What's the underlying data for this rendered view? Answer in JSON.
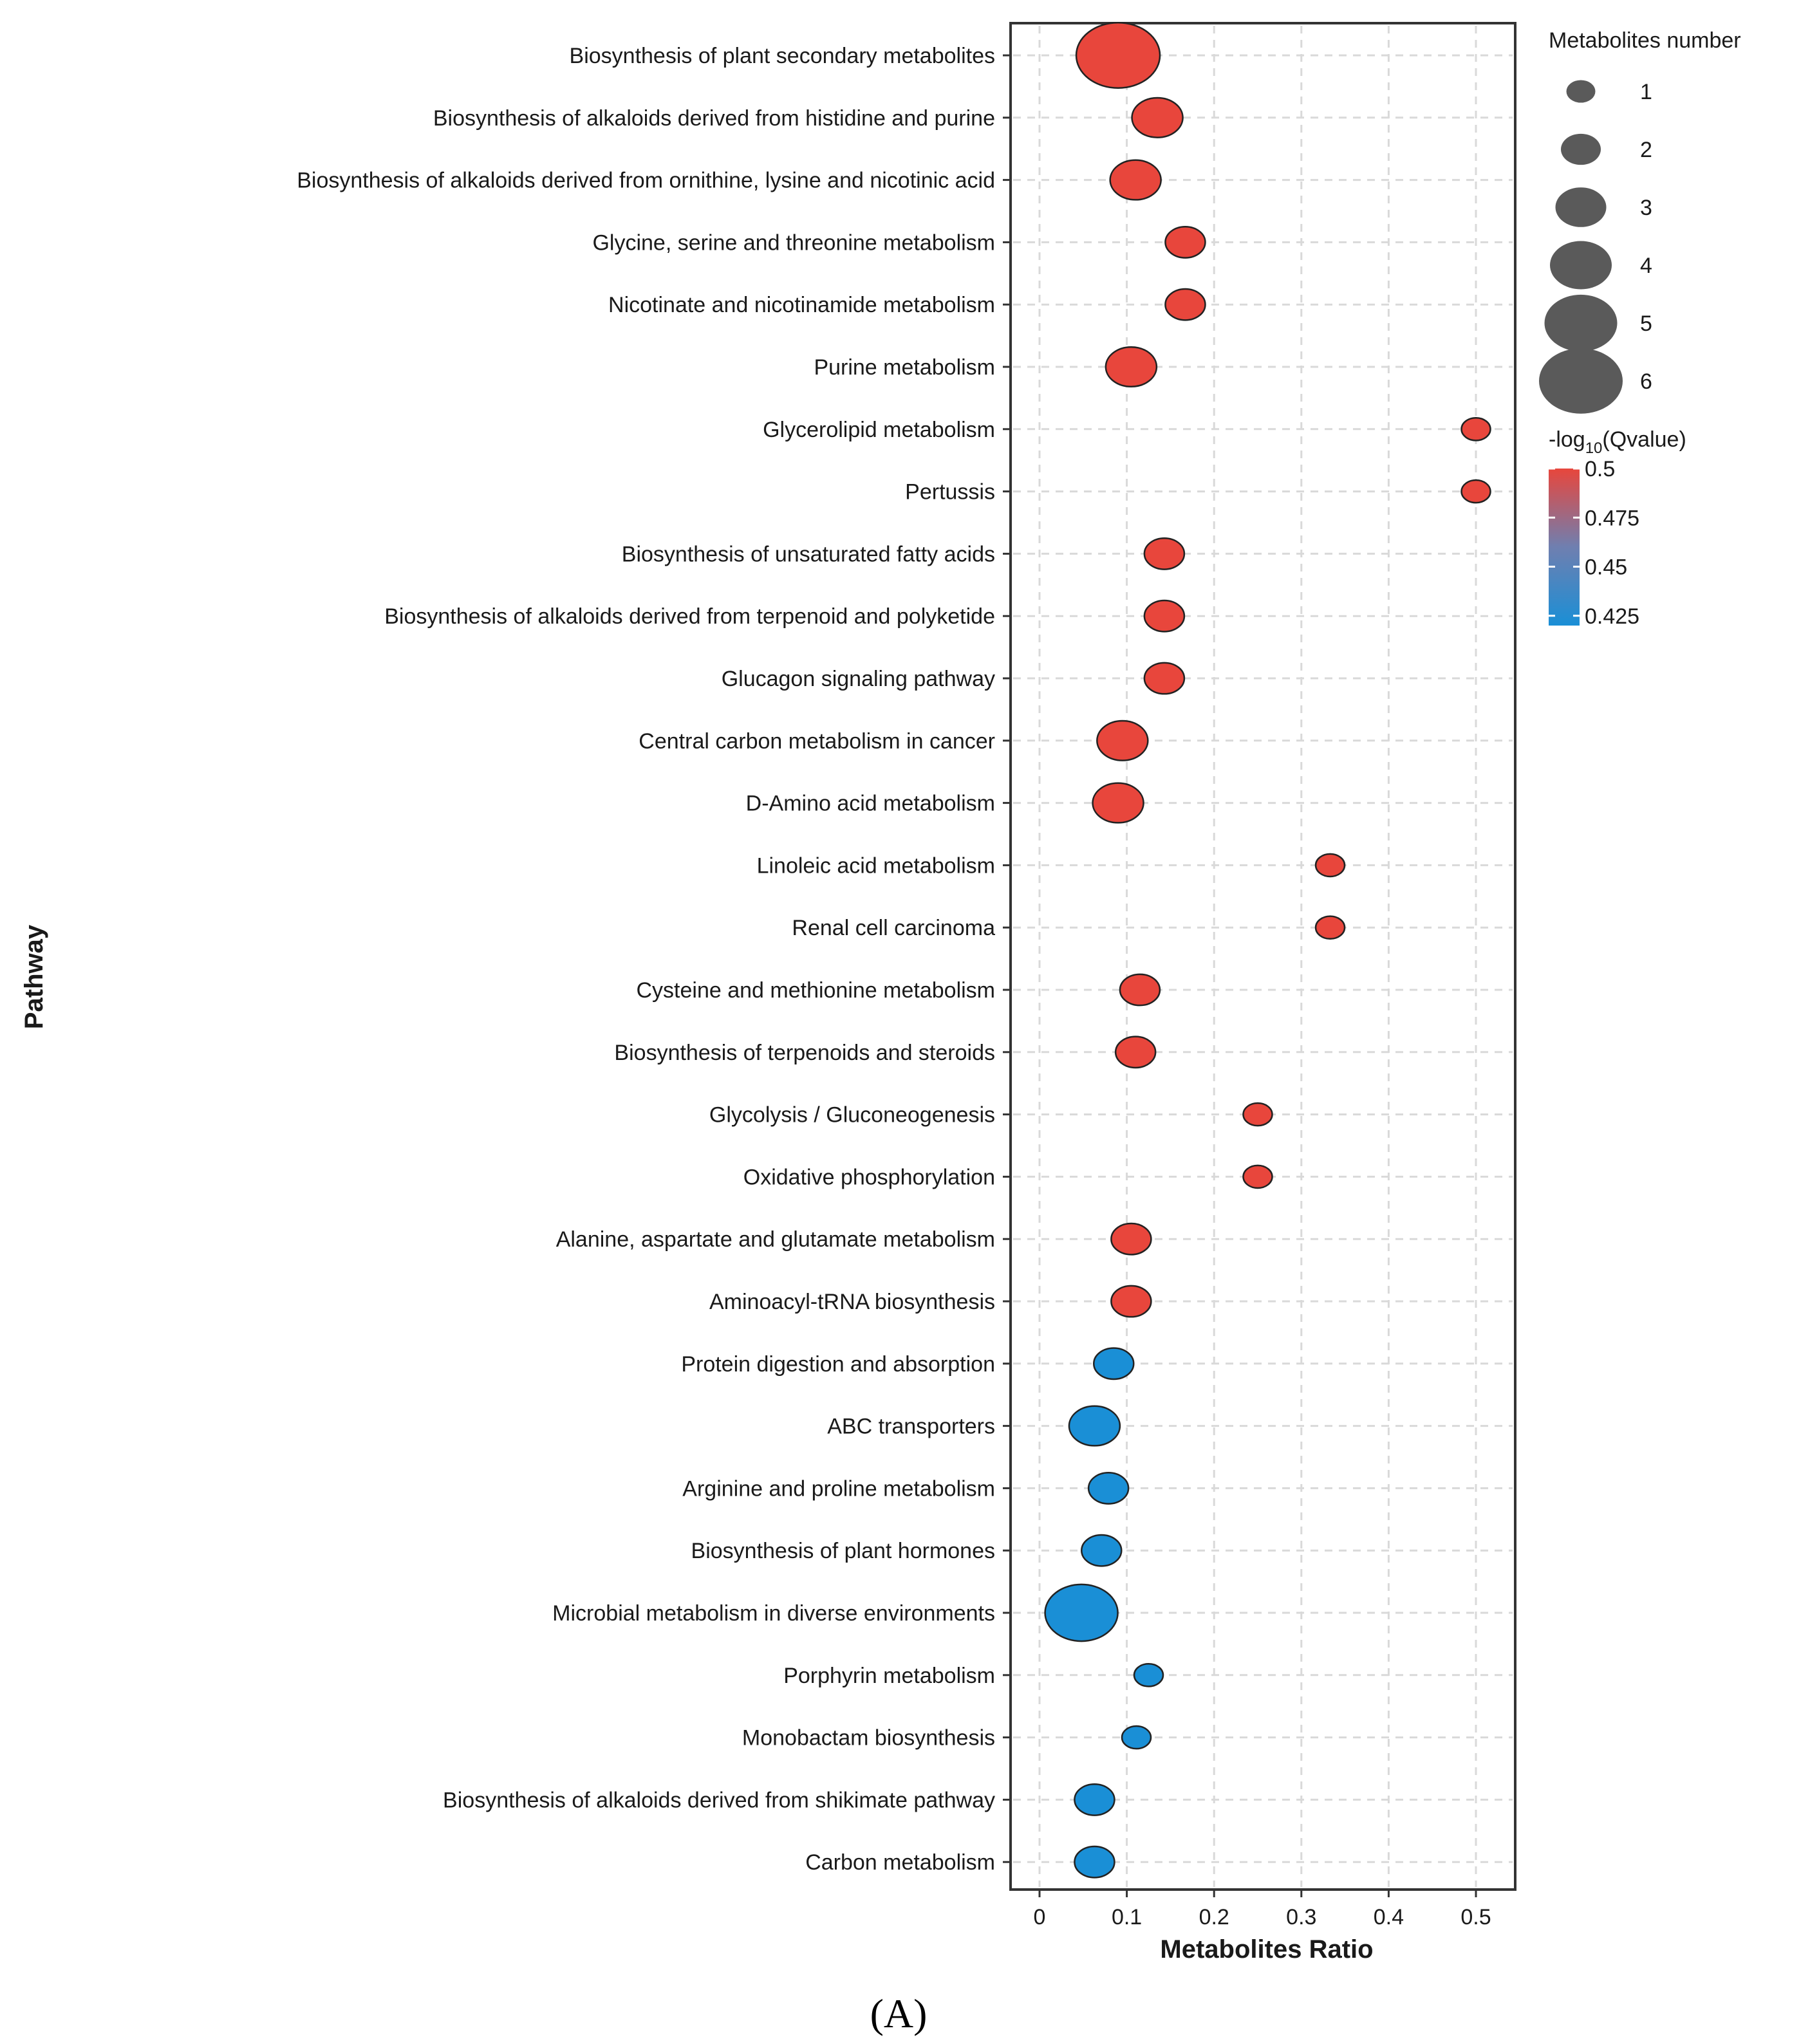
{
  "chart_data": {
    "type": "scatter",
    "variant": "bubble",
    "xlabel": "Metabolites Ratio",
    "ylabel": "Pathway",
    "xlim": [
      -0.03,
      0.55
    ],
    "xticks": [
      0,
      0.1,
      0.2,
      0.3,
      0.4,
      0.5
    ],
    "xtick_labels": [
      "0",
      "0.1",
      "0.2",
      "0.3",
      "0.4",
      "0.5"
    ],
    "grid": true,
    "pathways": [
      "Biosynthesis of plant secondary metabolites",
      "Biosynthesis of alkaloids derived from histidine and purine",
      "Biosynthesis of alkaloids derived from ornithine, lysine and nicotinic acid",
      "Glycine, serine and threonine metabolism",
      "Nicotinate and nicotinamide metabolism",
      "Purine metabolism",
      "Glycerolipid metabolism",
      "Pertussis",
      "Biosynthesis of unsaturated fatty acids",
      "Biosynthesis of alkaloids derived from terpenoid and polyketide",
      "Glucagon signaling pathway",
      "Central carbon metabolism in cancer",
      "D-Amino acid metabolism",
      "Linoleic acid metabolism",
      "Renal cell carcinoma",
      "Cysteine and methionine metabolism",
      "Biosynthesis of terpenoids and steroids",
      "Glycolysis / Gluconeogenesis",
      "Oxidative phosphorylation",
      "Alanine, aspartate and glutamate metabolism",
      "Aminoacyl-tRNA biosynthesis",
      "Protein digestion and absorption",
      "ABC transporters",
      "Arginine and proline metabolism",
      "Biosynthesis of plant hormones",
      "Microbial metabolism in diverse environments",
      "Porphyrin metabolism",
      "Monobactam biosynthesis",
      "Biosynthesis of alkaloids derived from shikimate pathway",
      "Carbon metabolism"
    ],
    "ratio": [
      0.09,
      0.135,
      0.11,
      0.167,
      0.167,
      0.105,
      0.5,
      0.5,
      0.143,
      0.143,
      0.143,
      0.095,
      0.09,
      0.333,
      0.333,
      0.115,
      0.11,
      0.25,
      0.25,
      0.105,
      0.105,
      0.085,
      0.063,
      0.079,
      0.071,
      0.048,
      0.125,
      0.111,
      0.063,
      0.063
    ],
    "metabolites_number": [
      6,
      3,
      3,
      2,
      2,
      3,
      1,
      1,
      2,
      2,
      2,
      3,
      3,
      1,
      1,
      2,
      2,
      1,
      1,
      2,
      2,
      2,
      3,
      2,
      2,
      5,
      1,
      1,
      2,
      2
    ],
    "neg_log10_qvalue": [
      0.5,
      0.5,
      0.5,
      0.5,
      0.5,
      0.5,
      0.5,
      0.5,
      0.5,
      0.5,
      0.5,
      0.5,
      0.5,
      0.5,
      0.5,
      0.5,
      0.5,
      0.5,
      0.5,
      0.5,
      0.5,
      0.42,
      0.42,
      0.42,
      0.42,
      0.42,
      0.42,
      0.42,
      0.42,
      0.42
    ],
    "size_legend": {
      "title": "Metabolites number",
      "values": [
        1,
        2,
        3,
        4,
        5,
        6
      ],
      "labels": [
        "1",
        "2",
        "3",
        "4",
        "5",
        "6"
      ]
    },
    "color_legend": {
      "title_prefix": "-log",
      "title_subscript": "10",
      "title_suffix": "(Qvalue)",
      "ticks": [
        0.5,
        0.475,
        0.45,
        0.425
      ],
      "tick_labels": [
        "0.5",
        "0.475",
        "0.45",
        "0.425"
      ],
      "range": [
        0.42,
        0.5
      ],
      "color_low": "#1a8fd6",
      "color_mid": "#6f7fb0",
      "color_high": "#e8463c"
    },
    "panel_label": "(A)"
  },
  "colors": {
    "bubble_red": "#e8463c",
    "bubble_blue": "#1a8fd6",
    "legend_gray": "#5a5a5a",
    "grid": "#d9d9d9",
    "panel_border": "#333333"
  }
}
